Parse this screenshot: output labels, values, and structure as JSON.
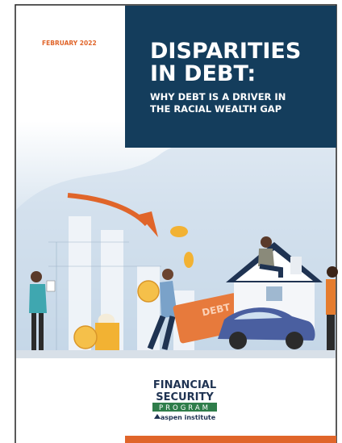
{
  "cover": {
    "date": "FEBRUARY 2022",
    "title_lines": [
      "DISPARITIES",
      "IN DEBT:"
    ],
    "subtitle_lines": [
      "WHY DEBT IS A DRIVER IN",
      "THE RACIAL WEALTH GAP"
    ],
    "illustration": {
      "card_label": "DEBT"
    },
    "logo": {
      "lines": [
        "FINANCIAL",
        "SECURITY"
      ],
      "program": "PROGRAM",
      "institute": "aspen institute"
    }
  }
}
